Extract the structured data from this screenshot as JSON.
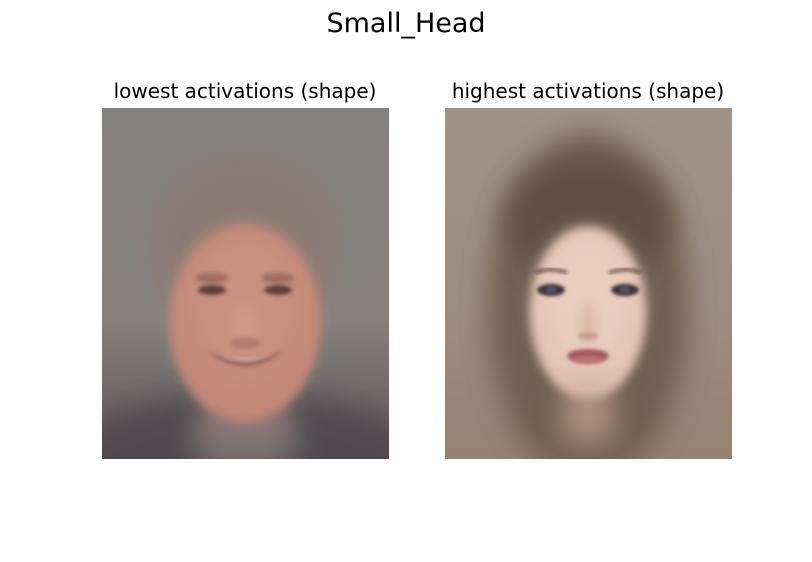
{
  "figure": {
    "title": "Small_Head"
  },
  "panels": [
    {
      "title": "lowest activations (shape)",
      "image": "average-face-middle-aged-man-smiling"
    },
    {
      "title": "highest activations (shape)",
      "image": "average-face-young-woman-long-hair"
    }
  ],
  "colors": {
    "left_background": "#85817f",
    "left_skin": "#c48877",
    "right_background": "#a09089",
    "right_hair": "#6a5646",
    "right_skin": "#e3c5b4"
  }
}
